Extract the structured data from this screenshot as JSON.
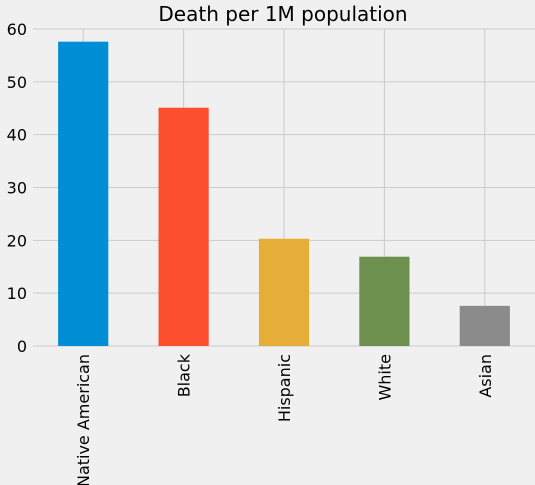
{
  "chart_data": {
    "type": "bar",
    "title": "Death per 1M population",
    "xlabel": "",
    "ylabel": "",
    "categories": [
      "Native American",
      "Black",
      "Hispanic",
      "White",
      "Asian"
    ],
    "values": [
      57.6,
      45.1,
      20.3,
      16.9,
      7.6
    ],
    "colors": [
      "#008fd5",
      "#fc4f30",
      "#e5ae38",
      "#6d904f",
      "#8b8b8b"
    ],
    "ylim": [
      0,
      60
    ],
    "yticks": [
      0,
      10,
      20,
      30,
      40,
      50,
      60
    ],
    "grid": true,
    "legend": "none",
    "background": "#f0f0f0",
    "grid_color": "#cbcbcb"
  }
}
